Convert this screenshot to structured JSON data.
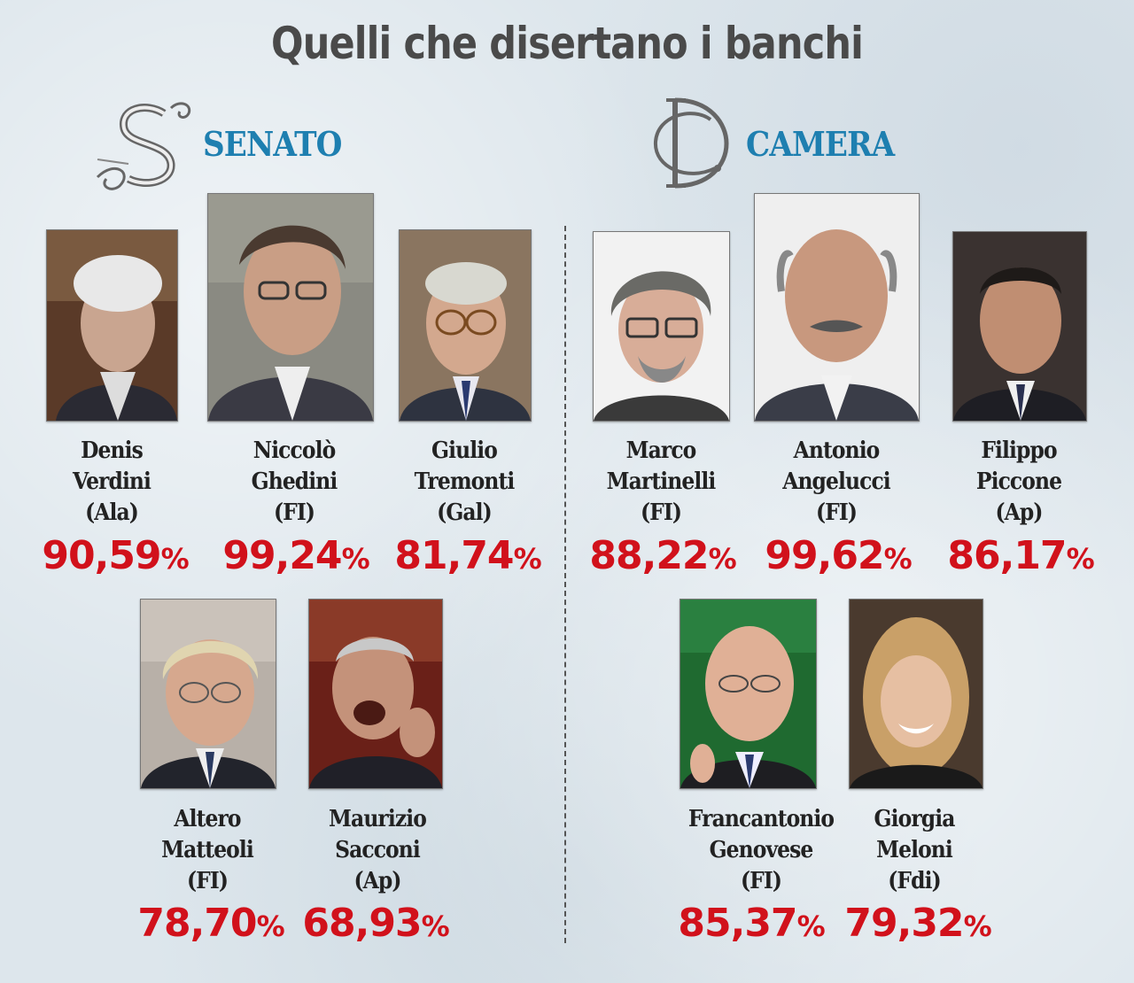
{
  "title": "Quelli che disertano i banchi",
  "senato": {
    "label": "SENATO",
    "logo_icon": "senato-s-monogram-icon",
    "members": [
      {
        "first": "Denis",
        "last": "Verdini",
        "party": "(Ala)",
        "pct": "90,59",
        "pct_sym": "%"
      },
      {
        "first": "Niccolò",
        "last": "Ghedini",
        "party": "(FI)",
        "pct": "99,24",
        "pct_sym": "%"
      },
      {
        "first": "Giulio",
        "last": "Tremonti",
        "party": "(Gal)",
        "pct": "81,74",
        "pct_sym": "%"
      },
      {
        "first": "Altero",
        "last": "Matteoli",
        "party": "(FI)",
        "pct": "78,70",
        "pct_sym": "%"
      },
      {
        "first": "Maurizio",
        "last": "Sacconi",
        "party": "(Ap)",
        "pct": "68,93",
        "pct_sym": "%"
      }
    ]
  },
  "camera": {
    "label": "CAMERA",
    "logo_icon": "camera-dc-monogram-icon",
    "members": [
      {
        "first": "Marco",
        "last": "Martinelli",
        "party": "(FI)",
        "pct": "88,22",
        "pct_sym": "%"
      },
      {
        "first": "Antonio",
        "last": "Angelucci",
        "party": "(FI)",
        "pct": "99,62",
        "pct_sym": "%"
      },
      {
        "first": "Filippo",
        "last": "Piccone",
        "party": "(Ap)",
        "pct": "86,17",
        "pct_sym": "%"
      },
      {
        "first": "Francantonio",
        "last": "Genovese",
        "party": "(FI)",
        "pct": "85,37",
        "pct_sym": "%"
      },
      {
        "first": "Giorgia",
        "last": "Meloni",
        "party": "(Fdi)",
        "pct": "79,32",
        "pct_sym": "%"
      }
    ]
  },
  "colors": {
    "accent_blue": "#1e7fb0",
    "percent_red": "#d1111b",
    "title_gray": "#4a4a4a"
  }
}
